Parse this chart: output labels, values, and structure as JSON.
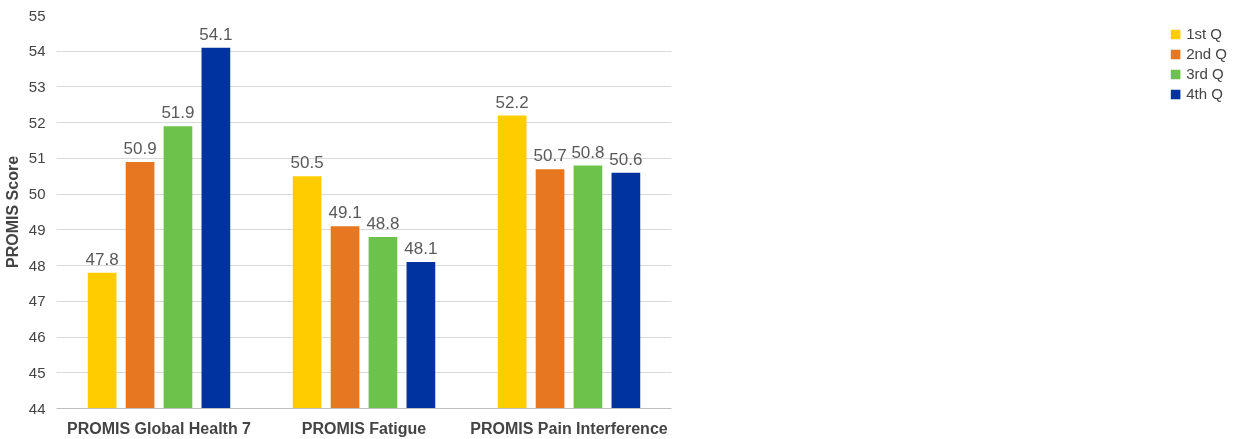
{
  "chart_data": {
    "type": "bar",
    "ylabel": "PROMIS Score",
    "categories": [
      "PROMIS Global Health 7",
      "PROMIS Fatigue",
      "PROMIS Pain Interference"
    ],
    "series": [
      {
        "name": "1st Q",
        "color": "#ffcc00",
        "values": [
          47.8,
          50.5,
          52.2
        ]
      },
      {
        "name": "2nd Q",
        "color": "#e87722",
        "values": [
          50.9,
          49.1,
          50.7
        ]
      },
      {
        "name": "3rd Q",
        "color": "#6cc24a",
        "values": [
          51.9,
          48.8,
          50.8
        ]
      },
      {
        "name": "4th Q",
        "color": "#0033a0",
        "values": [
          54.1,
          48.1,
          50.6
        ]
      }
    ],
    "ylim": [
      44,
      55
    ],
    "yticks": [
      44,
      45,
      46,
      47,
      48,
      49,
      50,
      51,
      52,
      53,
      54,
      55
    ],
    "grid": "y",
    "legend": "right",
    "data_labels": true
  }
}
